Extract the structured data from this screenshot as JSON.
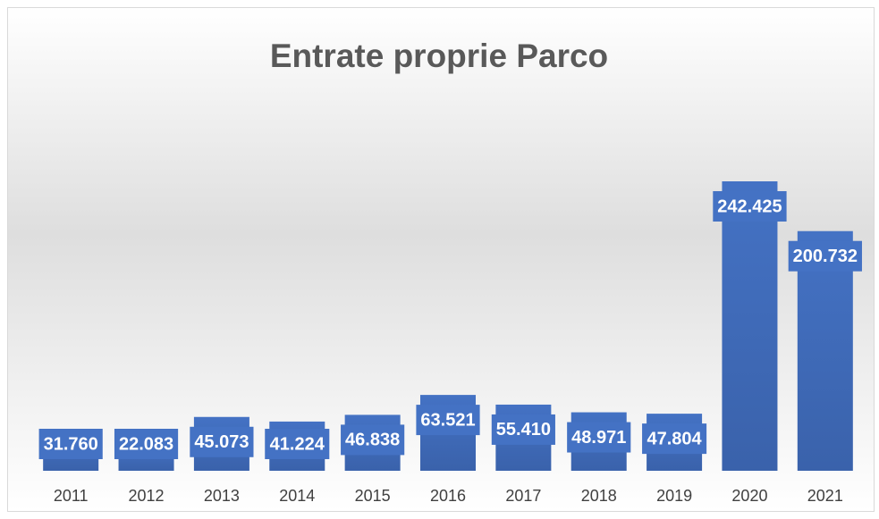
{
  "chart_data": {
    "type": "bar",
    "title": "Entrate proprie Parco",
    "categories": [
      "2011",
      "2012",
      "2013",
      "2014",
      "2015",
      "2016",
      "2017",
      "2018",
      "2019",
      "2020",
      "2021"
    ],
    "values": [
      31760,
      22083,
      45073,
      41224,
      46838,
      63521,
      55410,
      48971,
      47804,
      242425,
      200732
    ],
    "value_labels": [
      "31.760",
      "22.083",
      "45.073",
      "41.224",
      "46.838",
      "63.521",
      "55.410",
      "48.971",
      "47.804",
      "242.425",
      "200.732"
    ],
    "color": "#4472c4"
  }
}
